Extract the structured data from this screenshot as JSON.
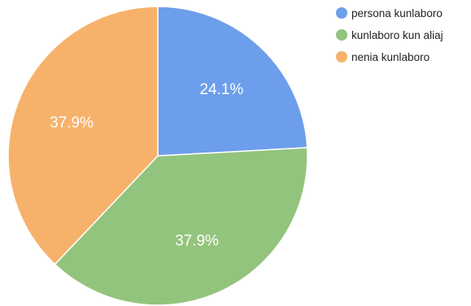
{
  "chart_data": {
    "type": "pie",
    "slices": [
      {
        "name": "persona kunlaboro",
        "value": 24.1,
        "label": "24.1%",
        "color": "#6d9eeb"
      },
      {
        "name": "kunlaboro kun aliaj",
        "value": 37.9,
        "label": "37.9%",
        "color": "#93c47d"
      },
      {
        "name": "nenia kunlaboro",
        "value": 37.9,
        "label": "37.9%",
        "color": "#f6b26b"
      }
    ],
    "start": "top",
    "direction": "clockwise",
    "legend_position": "top-right"
  }
}
